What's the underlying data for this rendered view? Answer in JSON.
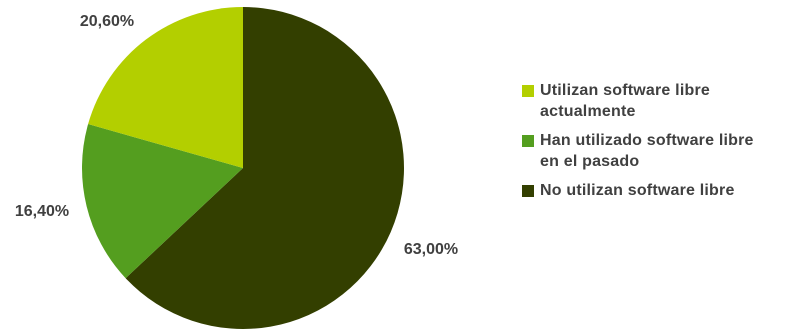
{
  "chart_data": {
    "type": "pie",
    "title": "",
    "start_angle_deg": 0,
    "direction": "clockwise",
    "slices": [
      {
        "label": "No utilizan software libre",
        "value": 63.0,
        "display": "63,00%",
        "color": "#333f00"
      },
      {
        "label": "Han utilizado software libre en el pasado",
        "value": 16.4,
        "display": "16,40%",
        "color": "#549e1f"
      },
      {
        "label": "Utilizan software libre actualmente",
        "value": 20.6,
        "display": "20,60%",
        "color": "#b3cf00"
      }
    ],
    "legend": {
      "placement": "right",
      "entries": [
        {
          "line1": "Utilizan software libre",
          "line2": "actualmente",
          "color": "#b3cf00"
        },
        {
          "line1": "Han utilizado software libre",
          "line2": "en el pasado",
          "color": "#549e1f"
        },
        {
          "line1": "No utilizan software libre",
          "line2": "",
          "color": "#333f00"
        }
      ]
    }
  }
}
